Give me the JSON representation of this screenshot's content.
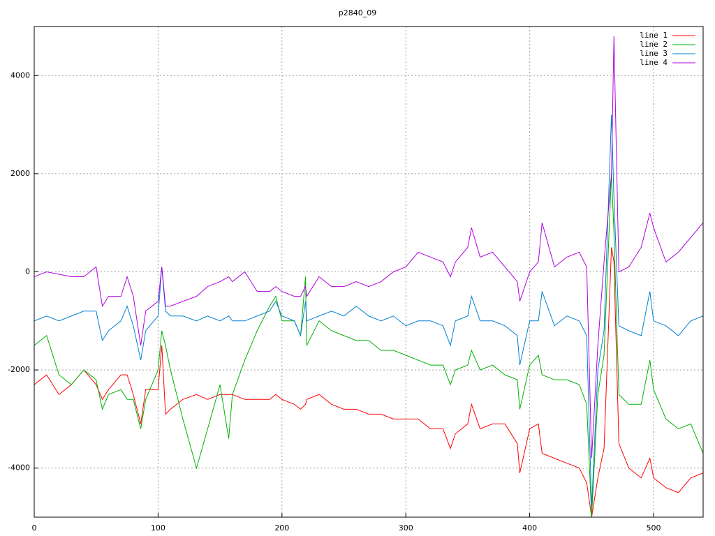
{
  "chart_data": {
    "type": "line",
    "title": "p2840_09",
    "x": [
      0,
      10,
      20,
      30,
      40,
      50,
      55,
      60,
      70,
      75,
      80,
      86,
      90,
      100,
      103,
      106,
      110,
      120,
      131,
      140,
      150,
      157,
      160,
      170,
      180,
      190,
      195,
      200,
      210,
      215,
      219,
      220,
      230,
      240,
      250,
      260,
      270,
      280,
      290,
      300,
      310,
      320,
      330,
      336,
      340,
      350,
      353,
      360,
      370,
      380,
      390,
      392,
      400,
      407,
      410,
      420,
      430,
      440,
      446,
      450,
      455,
      460,
      466,
      468,
      472,
      480,
      490,
      497,
      500,
      510,
      520,
      530,
      540
    ],
    "series": [
      {
        "name": "line 1",
        "color": "#ff0000",
        "values": [
          -2300,
          -2100,
          -2500,
          -2300,
          -2000,
          -2300,
          -2600,
          -2400,
          -2100,
          -2100,
          -2500,
          -3100,
          -2400,
          -2400,
          -1500,
          -2900,
          -2800,
          -2600,
          -2500,
          -2600,
          -2500,
          -2500,
          -2500,
          -2600,
          -2600,
          -2600,
          -2500,
          -2600,
          -2700,
          -2800,
          -2700,
          -2600,
          -2500,
          -2700,
          -2800,
          -2800,
          -2900,
          -2900,
          -3000,
          -3000,
          -3000,
          -3200,
          -3200,
          -3600,
          -3300,
          -3100,
          -2700,
          -3200,
          -3100,
          -3100,
          -3500,
          -4100,
          -3200,
          -3100,
          -3700,
          -3800,
          -3900,
          -4000,
          -4300,
          -5000,
          -4200,
          -3600,
          500,
          200,
          -3500,
          -4000,
          -4200,
          -3800,
          -4200,
          -4400,
          -4500,
          -4200,
          -4100
        ]
      },
      {
        "name": "line 2",
        "color": "#00b000",
        "values": [
          -1500,
          -1300,
          -2100,
          -2300,
          -2000,
          -2200,
          -2800,
          -2500,
          -2400,
          -2600,
          -2600,
          -3200,
          -2600,
          -2000,
          -1200,
          -1500,
          -2000,
          -3000,
          -4000,
          -3200,
          -2300,
          -3400,
          -2500,
          -1800,
          -1200,
          -700,
          -500,
          -1000,
          -1000,
          -1300,
          -100,
          -1500,
          -1000,
          -1200,
          -1300,
          -1400,
          -1400,
          -1600,
          -1600,
          -1700,
          -1800,
          -1900,
          -1900,
          -2300,
          -2000,
          -1900,
          -1600,
          -2000,
          -1900,
          -2100,
          -2200,
          -2800,
          -1900,
          -1700,
          -2100,
          -2200,
          -2200,
          -2300,
          -2700,
          -5000,
          -2500,
          -1700,
          2000,
          800,
          -2500,
          -2700,
          -2700,
          -1800,
          -2400,
          -3000,
          -3200,
          -3100,
          -3700
        ]
      },
      {
        "name": "line 3",
        "color": "#0080d0",
        "values": [
          -1000,
          -900,
          -1000,
          -900,
          -800,
          -800,
          -1400,
          -1200,
          -1000,
          -700,
          -1100,
          -1800,
          -1200,
          -900,
          100,
          -800,
          -900,
          -900,
          -1000,
          -900,
          -1000,
          -900,
          -1000,
          -1000,
          -900,
          -800,
          -600,
          -900,
          -1000,
          -1300,
          -600,
          -1000,
          -900,
          -800,
          -900,
          -700,
          -900,
          -1000,
          -900,
          -1100,
          -1000,
          -1000,
          -1100,
          -1500,
          -1000,
          -900,
          -500,
          -1000,
          -1000,
          -1100,
          -1300,
          -1900,
          -1000,
          -1000,
          -400,
          -1100,
          -900,
          -1000,
          -1300,
          -4800,
          -2000,
          -1200,
          3200,
          1500,
          -1100,
          -1200,
          -1300,
          -400,
          -1000,
          -1100,
          -1300,
          -1000,
          -900
        ]
      },
      {
        "name": "line 4",
        "color": "#b000e0",
        "values": [
          -100,
          0,
          -50,
          -100,
          -100,
          100,
          -700,
          -500,
          -500,
          -100,
          -500,
          -1500,
          -800,
          -600,
          100,
          -700,
          -700,
          -600,
          -500,
          -300,
          -200,
          -100,
          -200,
          0,
          -400,
          -400,
          -300,
          -400,
          -500,
          -500,
          -300,
          -500,
          -100,
          -300,
          -300,
          -200,
          -300,
          -200,
          0,
          100,
          400,
          300,
          200,
          -100,
          200,
          500,
          900,
          300,
          400,
          100,
          -200,
          -600,
          0,
          200,
          1000,
          100,
          300,
          400,
          100,
          -3800,
          -1500,
          200,
          2000,
          4800,
          0,
          100,
          500,
          1200,
          900,
          200,
          400,
          700,
          1000
        ]
      }
    ],
    "xlim": [
      0,
      540
    ],
    "xticks": [
      0,
      100,
      200,
      300,
      400,
      500
    ],
    "ylim": [
      -5000,
      5000
    ],
    "yticks": [
      -4000,
      -2000,
      0,
      2000,
      4000
    ],
    "grid": true,
    "legend": "top-right"
  }
}
